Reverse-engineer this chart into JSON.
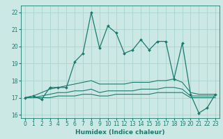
{
  "xlabel": "Humidex (Indice chaleur)",
  "ylabel": "",
  "bg_color": "#cce8e4",
  "grid_color": "#aad4ce",
  "line_color": "#1a7a6e",
  "x_values": [
    0,
    1,
    2,
    3,
    4,
    5,
    6,
    7,
    8,
    9,
    10,
    11,
    12,
    13,
    14,
    15,
    16,
    17,
    18,
    19,
    20,
    21,
    22,
    23
  ],
  "main_line": [
    17.0,
    17.1,
    16.9,
    17.6,
    17.6,
    17.6,
    19.1,
    19.6,
    22.0,
    19.9,
    21.2,
    20.8,
    19.6,
    19.8,
    20.4,
    19.8,
    20.3,
    20.3,
    18.1,
    20.2,
    17.2,
    16.1,
    16.4,
    17.2
  ],
  "upper_line": [
    17.0,
    17.1,
    17.3,
    17.5,
    17.6,
    17.7,
    17.8,
    17.9,
    18.0,
    17.8,
    17.8,
    17.8,
    17.8,
    17.9,
    17.9,
    17.9,
    18.0,
    18.0,
    18.1,
    17.9,
    17.3,
    17.2,
    17.2,
    17.2
  ],
  "mid_line": [
    17.0,
    17.0,
    17.1,
    17.2,
    17.3,
    17.3,
    17.4,
    17.4,
    17.5,
    17.3,
    17.4,
    17.4,
    17.4,
    17.4,
    17.5,
    17.5,
    17.5,
    17.6,
    17.6,
    17.5,
    17.1,
    17.1,
    17.1,
    17.1
  ],
  "lower_line": [
    17.0,
    17.0,
    17.0,
    17.0,
    17.1,
    17.1,
    17.1,
    17.2,
    17.2,
    17.1,
    17.1,
    17.2,
    17.2,
    17.2,
    17.2,
    17.2,
    17.3,
    17.3,
    17.3,
    17.3,
    17.0,
    17.0,
    17.0,
    17.0
  ],
  "ylim": [
    15.8,
    22.4
  ],
  "xlim": [
    -0.5,
    23.5
  ],
  "yticks": [
    16,
    17,
    18,
    19,
    20,
    21,
    22
  ],
  "xticks": [
    0,
    1,
    2,
    3,
    4,
    5,
    6,
    7,
    8,
    9,
    10,
    11,
    12,
    13,
    14,
    15,
    16,
    17,
    18,
    19,
    20,
    21,
    22,
    23
  ],
  "tick_fontsize": 5.5,
  "xlabel_fontsize": 6.5
}
